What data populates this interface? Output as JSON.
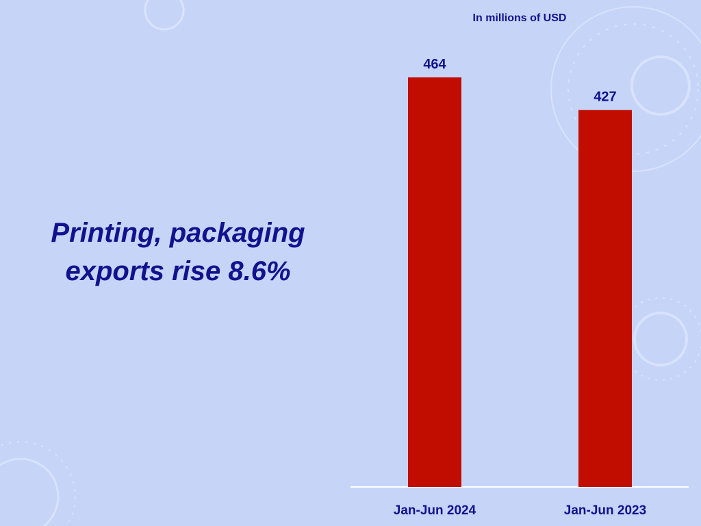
{
  "headline": {
    "line1": "Printing, packaging",
    "line2": "exports rise 8.6%"
  },
  "colors": {
    "bar": "#c00d00",
    "text": "#12128f",
    "axis": "#ffffff",
    "background": "#c6d4f8"
  },
  "chart_data": {
    "type": "bar",
    "unit_note": "In millions of USD",
    "categories": [
      "Jan-Jun 2024",
      "Jan-Jun 2023"
    ],
    "values": [
      464,
      427
    ],
    "data_labels": [
      "464",
      "427"
    ],
    "title": "",
    "xlabel": "",
    "ylabel": "",
    "grid": false,
    "legend": "none"
  }
}
